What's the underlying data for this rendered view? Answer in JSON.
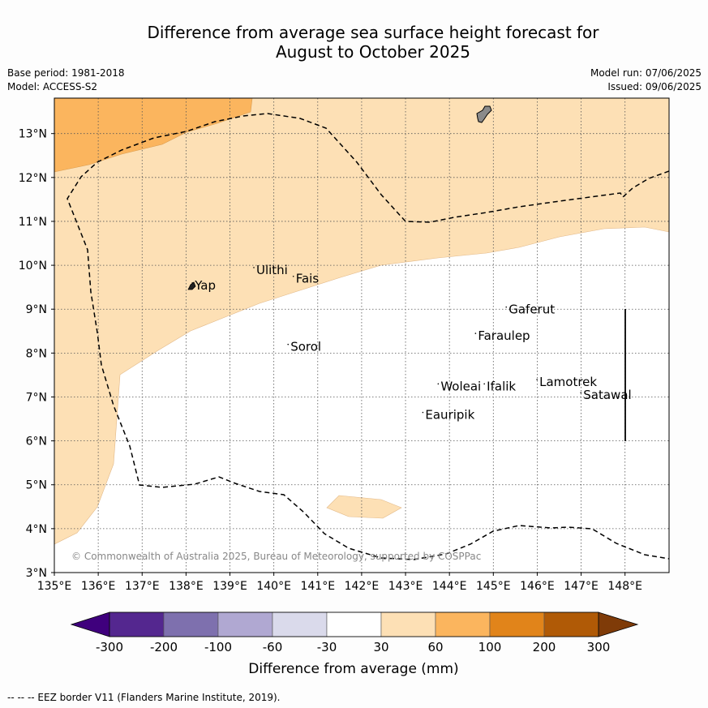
{
  "title": {
    "line1": "Difference from average sea surface height forecast for",
    "line2": "August to October 2025"
  },
  "meta": {
    "base_period": "Base period: 1981-2018",
    "model": "Model: ACCESS-S2",
    "model_run": "Model run: 07/06/2025",
    "issued": "Issued: 09/06/2025"
  },
  "map": {
    "extent": {
      "lon": [
        135,
        149
      ],
      "lat": [
        3,
        13.8
      ]
    },
    "x_ticks": [
      "135°E",
      "136°E",
      "137°E",
      "138°E",
      "139°E",
      "140°E",
      "141°E",
      "142°E",
      "143°E",
      "144°E",
      "145°E",
      "146°E",
      "147°E",
      "148°E"
    ],
    "y_ticks": [
      "3°N",
      "4°N",
      "5°N",
      "6°N",
      "7°N",
      "8°N",
      "9°N",
      "10°N",
      "11°N",
      "12°N",
      "13°N"
    ],
    "places": [
      {
        "name": "Yap",
        "lon": 138.2,
        "lat": 9.45
      },
      {
        "name": "Ulithi",
        "lon": 139.6,
        "lat": 9.8
      },
      {
        "name": "Fais",
        "lon": 140.5,
        "lat": 9.6
      },
      {
        "name": "Sorol",
        "lon": 140.38,
        "lat": 8.05
      },
      {
        "name": "Gaferut",
        "lon": 145.35,
        "lat": 8.9
      },
      {
        "name": "Faraulep",
        "lon": 144.65,
        "lat": 8.3
      },
      {
        "name": "Woleai",
        "lon": 143.8,
        "lat": 7.15
      },
      {
        "name": "Ifalik",
        "lon": 144.85,
        "lat": 7.15
      },
      {
        "name": "Lamotrek",
        "lon": 146.05,
        "lat": 7.25
      },
      {
        "name": "Satawal",
        "lon": 147.05,
        "lat": 6.95
      },
      {
        "name": "Eauripik",
        "lon": 143.45,
        "lat": 6.5
      }
    ],
    "copyright": "© Commonwealth of Australia 2025, Bureau of Meteorology, supported by COSPPac"
  },
  "colorbar": {
    "labels": [
      "-300",
      "-200",
      "-100",
      "-60",
      "-30",
      "30",
      "60",
      "100",
      "200",
      "300"
    ],
    "colors": [
      "#54278f",
      "#7e70ae",
      "#b0a8d2",
      "#dadaeb",
      "#ffffff",
      "#fde0b5",
      "#fbb55e",
      "#e1841a",
      "#b05a06"
    ],
    "under_color": "#3f007d",
    "over_color": "#7f3b08",
    "title": "Difference from average (mm)"
  },
  "legend_colors": {
    "light_orange": "#fde0b5",
    "mid_orange": "#fbb55e"
  },
  "footer": "--  --  -- EEZ border V11 (Flanders Marine Institute, 2019)."
}
